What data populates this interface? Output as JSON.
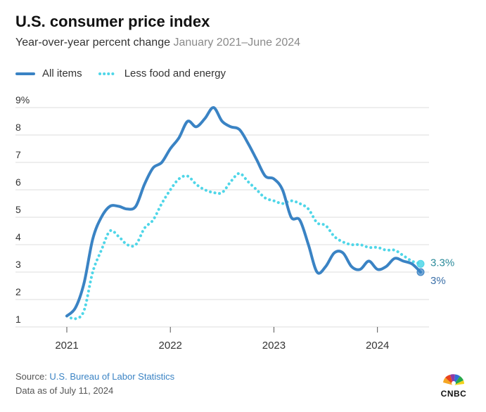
{
  "header": {
    "title": "U.S. consumer price index",
    "subtitle_main": "Year-over-year percent change",
    "subtitle_range": "January 2021–June 2024"
  },
  "legend": [
    {
      "label": "All items",
      "style": "solid",
      "color": "#3a83c4"
    },
    {
      "label": "Less food and energy",
      "style": "dotted",
      "color": "#4fd6e8"
    }
  ],
  "footer": {
    "source_prefix": "Source: ",
    "source_name": "U.S. Bureau of Labor Statistics",
    "date_note": "Data as of July 11, 2024"
  },
  "logo": {
    "name": "CNBC",
    "icon": "peacock-icon"
  },
  "chart_data": {
    "type": "line",
    "title": "U.S. consumer price index",
    "ylim": [
      1,
      9
    ],
    "yticks": [
      1,
      2,
      3,
      4,
      5,
      6,
      7,
      8,
      9
    ],
    "ytick_labels": [
      "1",
      "2",
      "3",
      "4",
      "5",
      "6",
      "7",
      "8",
      "9%"
    ],
    "xlim": [
      "2021-01",
      "2024-06"
    ],
    "xticks": [
      "2021",
      "2022",
      "2023",
      "2024"
    ],
    "grid": true,
    "legend_position": "top-left",
    "x": [
      "2021-01",
      "2021-02",
      "2021-03",
      "2021-04",
      "2021-05",
      "2021-06",
      "2021-07",
      "2021-08",
      "2021-09",
      "2021-10",
      "2021-11",
      "2021-12",
      "2022-01",
      "2022-02",
      "2022-03",
      "2022-04",
      "2022-05",
      "2022-06",
      "2022-07",
      "2022-08",
      "2022-09",
      "2022-10",
      "2022-11",
      "2022-12",
      "2023-01",
      "2023-02",
      "2023-03",
      "2023-04",
      "2023-05",
      "2023-06",
      "2023-07",
      "2023-08",
      "2023-09",
      "2023-10",
      "2023-11",
      "2023-12",
      "2024-01",
      "2024-02",
      "2024-03",
      "2024-04",
      "2024-05",
      "2024-06"
    ],
    "series": [
      {
        "name": "All items",
        "color": "#3a83c4",
        "style": "solid",
        "values": [
          1.4,
          1.7,
          2.6,
          4.2,
          5.0,
          5.4,
          5.4,
          5.3,
          5.4,
          6.2,
          6.8,
          7.0,
          7.5,
          7.9,
          8.5,
          8.3,
          8.6,
          9.0,
          8.5,
          8.3,
          8.2,
          7.7,
          7.1,
          6.5,
          6.4,
          6.0,
          5.0,
          4.9,
          4.0,
          3.0,
          3.2,
          3.7,
          3.7,
          3.2,
          3.1,
          3.4,
          3.1,
          3.2,
          3.5,
          3.4,
          3.3,
          3.0
        ],
        "end_label": "3%"
      },
      {
        "name": "Less food and energy",
        "color": "#4fd6e8",
        "style": "dotted",
        "values": [
          1.4,
          1.3,
          1.6,
          3.0,
          3.8,
          4.5,
          4.3,
          4.0,
          4.0,
          4.6,
          4.9,
          5.5,
          6.0,
          6.4,
          6.5,
          6.2,
          6.0,
          5.9,
          5.9,
          6.3,
          6.6,
          6.3,
          6.0,
          5.7,
          5.6,
          5.5,
          5.6,
          5.5,
          5.3,
          4.8,
          4.7,
          4.3,
          4.1,
          4.0,
          4.0,
          3.9,
          3.9,
          3.8,
          3.8,
          3.6,
          3.4,
          3.3
        ],
        "end_label": "3.3%"
      }
    ]
  }
}
